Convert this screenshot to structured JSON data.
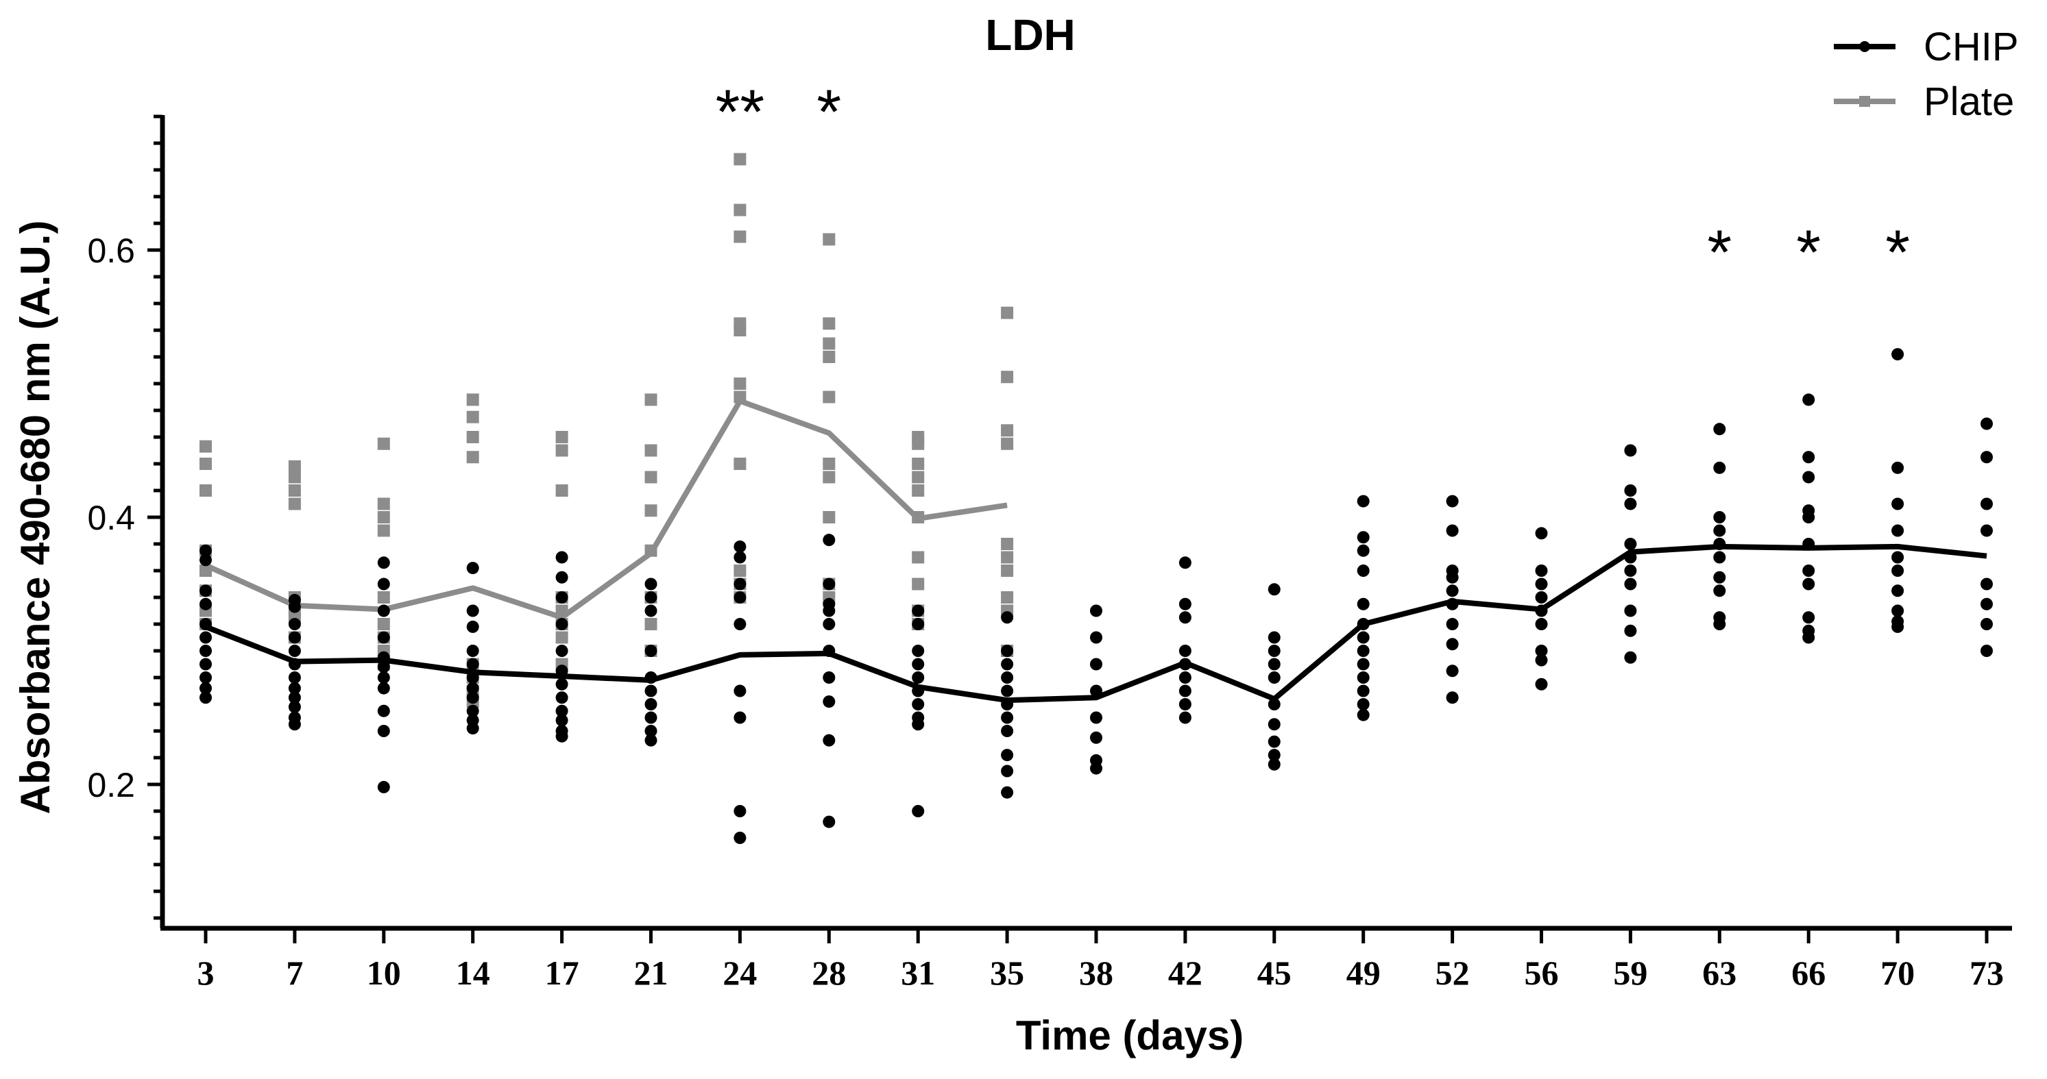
{
  "chart_data": {
    "type": "scatter",
    "title": "LDH",
    "xlabel": "Time (days)",
    "ylabel": "Absorbance 490-680 nm (A.U.)",
    "ylim": [
      0.1,
      0.7
    ],
    "yticks": [
      "0.2",
      "0.4",
      "0.6"
    ],
    "categories": [
      "3",
      "7",
      "10",
      "14",
      "17",
      "21",
      "24",
      "28",
      "31",
      "35",
      "38",
      "42",
      "45",
      "49",
      "52",
      "56",
      "59",
      "63",
      "66",
      "70",
      "73"
    ],
    "legend_position": "top-right",
    "colors": {
      "CHIP": "#000000",
      "Plate": "#8c8c8c"
    },
    "series": [
      {
        "name": "CHIP",
        "mean": [
          0.318,
          0.292,
          0.293,
          0.284,
          0.281,
          0.278,
          0.297,
          0.298,
          0.273,
          0.263,
          0.265,
          0.291,
          0.264,
          0.32,
          0.337,
          0.331,
          0.374,
          0.378,
          0.377,
          0.378,
          0.371
        ],
        "points": [
          [
            0.375,
            0.368,
            0.345,
            0.335,
            0.32,
            0.31,
            0.3,
            0.29,
            0.28,
            0.272,
            0.265
          ],
          [
            0.338,
            0.333,
            0.32,
            0.31,
            0.3,
            0.29,
            0.28,
            0.272,
            0.265,
            0.258,
            0.25,
            0.245
          ],
          [
            0.366,
            0.35,
            0.33,
            0.31,
            0.295,
            0.288,
            0.28,
            0.272,
            0.255,
            0.24,
            0.198
          ],
          [
            0.362,
            0.33,
            0.318,
            0.3,
            0.29,
            0.28,
            0.272,
            0.265,
            0.255,
            0.248,
            0.242
          ],
          [
            0.37,
            0.355,
            0.34,
            0.32,
            0.3,
            0.285,
            0.275,
            0.265,
            0.255,
            0.248,
            0.24,
            0.236
          ],
          [
            0.35,
            0.34,
            0.33,
            0.3,
            0.28,
            0.27,
            0.26,
            0.25,
            0.24,
            0.233
          ],
          [
            0.378,
            0.37,
            0.35,
            0.34,
            0.32,
            0.27,
            0.25,
            0.18,
            0.16
          ],
          [
            0.383,
            0.35,
            0.335,
            0.33,
            0.32,
            0.3,
            0.28,
            0.262,
            0.233,
            0.172
          ],
          [
            0.33,
            0.32,
            0.3,
            0.29,
            0.28,
            0.27,
            0.26,
            0.25,
            0.245,
            0.18
          ],
          [
            0.325,
            0.3,
            0.29,
            0.28,
            0.27,
            0.26,
            0.25,
            0.24,
            0.222,
            0.21,
            0.194
          ],
          [
            0.33,
            0.31,
            0.29,
            0.27,
            0.25,
            0.235,
            0.218,
            0.212
          ],
          [
            0.366,
            0.335,
            0.325,
            0.3,
            0.29,
            0.28,
            0.27,
            0.26,
            0.25
          ],
          [
            0.346,
            0.31,
            0.3,
            0.29,
            0.28,
            0.26,
            0.245,
            0.232,
            0.222,
            0.215
          ],
          [
            0.412,
            0.385,
            0.375,
            0.36,
            0.335,
            0.32,
            0.31,
            0.3,
            0.29,
            0.28,
            0.27,
            0.26,
            0.252
          ],
          [
            0.412,
            0.39,
            0.36,
            0.355,
            0.345,
            0.335,
            0.32,
            0.305,
            0.285,
            0.265
          ],
          [
            0.388,
            0.36,
            0.35,
            0.34,
            0.33,
            0.32,
            0.3,
            0.293,
            0.275
          ],
          [
            0.45,
            0.42,
            0.41,
            0.38,
            0.37,
            0.36,
            0.35,
            0.33,
            0.315,
            0.295
          ],
          [
            0.466,
            0.437,
            0.4,
            0.39,
            0.38,
            0.37,
            0.355,
            0.345,
            0.325,
            0.32
          ],
          [
            0.488,
            0.445,
            0.43,
            0.405,
            0.4,
            0.38,
            0.36,
            0.35,
            0.325,
            0.315,
            0.31
          ],
          [
            0.522,
            0.437,
            0.41,
            0.39,
            0.37,
            0.36,
            0.345,
            0.33,
            0.322,
            0.318
          ],
          [
            0.47,
            0.445,
            0.41,
            0.39,
            0.35,
            0.335,
            0.32,
            0.3
          ]
        ]
      },
      {
        "name": "Plate",
        "mean": [
          0.364,
          0.334,
          0.331,
          0.347,
          0.325,
          0.373,
          0.487,
          0.463,
          0.399,
          0.409
        ],
        "points": [
          [
            0.453,
            0.44,
            0.42,
            0.375,
            0.36,
            0.345,
            0.33,
            0.32
          ],
          [
            0.438,
            0.43,
            0.42,
            0.41,
            0.34,
            0.33,
            0.325,
            0.31
          ],
          [
            0.455,
            0.41,
            0.4,
            0.39,
            0.34,
            0.32,
            0.31,
            0.3,
            0.29
          ],
          [
            0.488,
            0.475,
            0.46,
            0.445,
            0.29,
            0.28,
            0.27,
            0.262
          ],
          [
            0.46,
            0.45,
            0.42,
            0.34,
            0.33,
            0.32,
            0.31,
            0.29
          ],
          [
            0.488,
            0.45,
            0.43,
            0.405,
            0.375,
            0.34,
            0.32,
            0.3
          ],
          [
            0.668,
            0.63,
            0.61,
            0.545,
            0.54,
            0.5,
            0.49,
            0.44,
            0.36,
            0.35,
            0.34
          ],
          [
            0.608,
            0.545,
            0.53,
            0.52,
            0.49,
            0.44,
            0.43,
            0.4,
            0.35,
            0.34
          ],
          [
            0.46,
            0.455,
            0.44,
            0.43,
            0.42,
            0.4,
            0.37,
            0.35,
            0.33,
            0.32
          ],
          [
            0.553,
            0.505,
            0.465,
            0.455,
            0.38,
            0.37,
            0.36,
            0.34,
            0.33,
            0.3
          ]
        ]
      }
    ],
    "annotations": [
      {
        "label": "**",
        "x": "24"
      },
      {
        "label": "*",
        "x": "28"
      },
      {
        "label": "*",
        "x": "63"
      },
      {
        "label": "*",
        "x": "66"
      },
      {
        "label": "*",
        "x": "70"
      }
    ]
  }
}
